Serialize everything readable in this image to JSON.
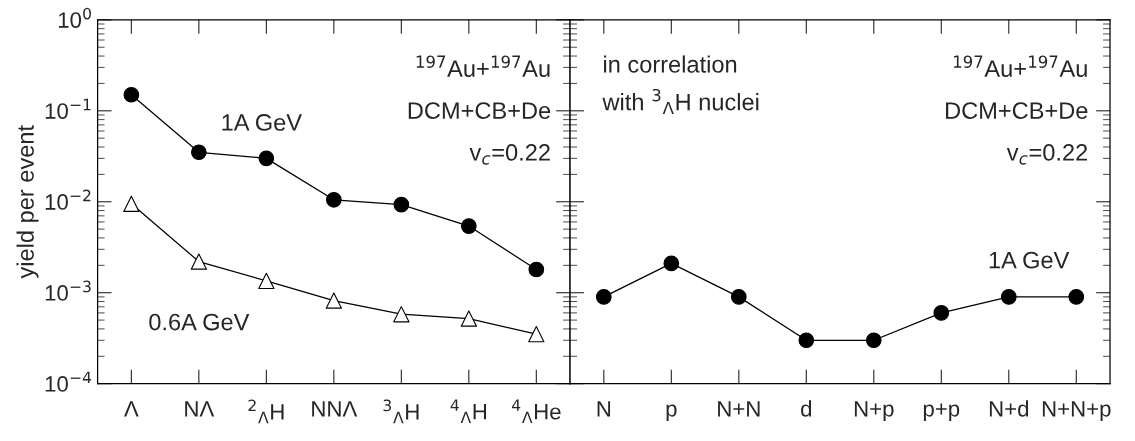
{
  "chart_data": [
    {
      "type": "line",
      "ylabel": "yield per event",
      "categories": [
        "Λ",
        "NΛ",
        "$^{2}$$_{Λ}$H",
        "NNΛ",
        "$^{3}$$_{Λ}$H",
        "$^{4}$$_{Λ}$H",
        "$^{4}$$_{Λ}$He"
      ],
      "log": true,
      "ylim": [
        0.0001,
        1
      ],
      "yticks": [
        {
          "value": 0.0001,
          "label": "10$^{−4}$"
        },
        {
          "value": 0.001,
          "label": "10$^{−3}$"
        },
        {
          "value": 0.01,
          "label": "10$^{−2}$"
        },
        {
          "value": 0.1,
          "label": "10$^{−1}$"
        },
        {
          "value": 1,
          "label": "10$^{0}$"
        }
      ],
      "grid": false,
      "legend": false,
      "series": [
        {
          "name": "1A GeV",
          "color": "#000000",
          "marker": "circle",
          "values": [
            0.15,
            0.035,
            0.03,
            0.0105,
            0.0093,
            0.0054,
            0.0018
          ]
        },
        {
          "name": "0.6A GeV",
          "color": "#000000",
          "marker": "triangle",
          "values": [
            0.0095,
            0.0022,
            0.00135,
            0.00082,
            0.00058,
            0.00052,
            0.00035
          ]
        }
      ],
      "annotations": [
        "$^{197}$Au+$^{197}$Au",
        "DCM+CB+De",
        "v$_{c}$=0.22"
      ]
    },
    {
      "type": "line",
      "categories": [
        "N",
        "p",
        "N+N",
        "d",
        "N+p",
        "p+p",
        "N+d",
        "N+N+p"
      ],
      "log": true,
      "ylim": [
        0.0001,
        1
      ],
      "yticks": [
        {
          "value": 0.0001,
          "label": null
        },
        {
          "value": 0.001,
          "label": null
        },
        {
          "value": 0.01,
          "label": null
        },
        {
          "value": 0.1,
          "label": null
        },
        {
          "value": 1,
          "label": null
        }
      ],
      "tick_labels": "x",
      "grid": false,
      "legend": false,
      "series": [
        {
          "name": "1A GeV",
          "color": "#000000",
          "marker": "circle",
          "values": [
            0.0009,
            0.0021,
            0.0009,
            0.0003,
            0.0003,
            0.0006,
            0.0009,
            0.0009
          ]
        }
      ],
      "annotations": [
        "$^{197}$Au+$^{197}$Au",
        "DCM+CB+De",
        "v$_{c}$=0.22",
        "in correlation\nwith $^{3}$$_{Λ}$H nuclei"
      ]
    }
  ]
}
